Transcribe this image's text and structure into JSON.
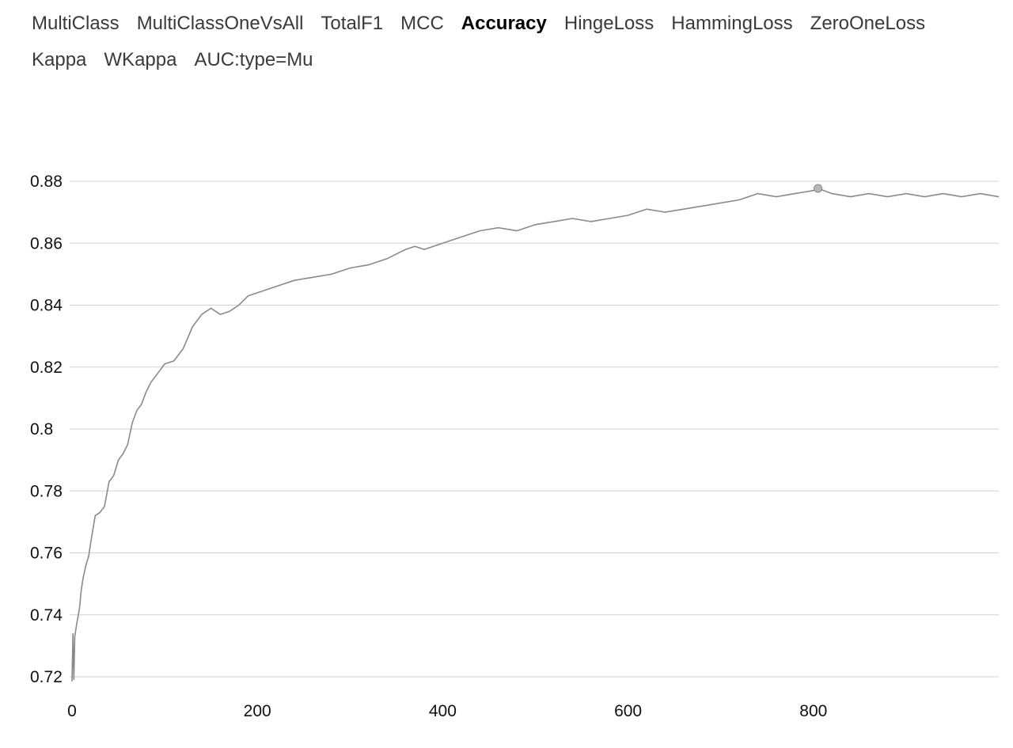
{
  "tabs": [
    {
      "label": "MultiClass",
      "active": false
    },
    {
      "label": "MultiClassOneVsAll",
      "active": false
    },
    {
      "label": "TotalF1",
      "active": false
    },
    {
      "label": "MCC",
      "active": false
    },
    {
      "label": "Accuracy",
      "active": true
    },
    {
      "label": "HingeLoss",
      "active": false
    },
    {
      "label": "HammingLoss",
      "active": false
    },
    {
      "label": "ZeroOneLoss",
      "active": false
    },
    {
      "label": "Kappa",
      "active": false
    },
    {
      "label": "WKappa",
      "active": false
    },
    {
      "label": "AUC:type=Mu",
      "active": false
    }
  ],
  "colors": {
    "line": "#8a8a8a",
    "grid": "#d2d2d2",
    "marker": "#b8b8b8"
  },
  "chart_data": {
    "type": "line",
    "title": "",
    "xlabel": "",
    "ylabel": "",
    "xlim": [
      0,
      1000
    ],
    "ylim": [
      0.72,
      0.88
    ],
    "x_ticks": [
      0,
      200,
      400,
      600,
      800
    ],
    "y_ticks": [
      0.72,
      0.74,
      0.76,
      0.78,
      0.8,
      0.82,
      0.84,
      0.86,
      0.88
    ],
    "y_tick_labels": [
      "0.72",
      "0.74",
      "0.76",
      "0.78",
      "0.8",
      "0.82",
      "0.84",
      "0.86",
      "0.88"
    ],
    "grid": true,
    "legend": "none",
    "highlight_point": {
      "x": 805,
      "y": 0.8777
    },
    "series": [
      {
        "x": [
          0,
          1,
          2,
          3,
          5,
          8,
          10,
          12,
          15,
          18,
          20,
          25,
          30,
          35,
          40,
          45,
          50,
          55,
          60,
          65,
          70,
          75,
          80,
          85,
          90,
          95,
          100,
          110,
          120,
          130,
          140,
          150,
          160,
          170,
          180,
          190,
          200,
          220,
          240,
          260,
          280,
          300,
          320,
          340,
          360,
          370,
          380,
          400,
          420,
          440,
          460,
          480,
          500,
          520,
          540,
          560,
          580,
          600,
          620,
          640,
          660,
          680,
          700,
          720,
          740,
          760,
          780,
          800,
          805,
          820,
          840,
          860,
          880,
          900,
          920,
          940,
          960,
          980,
          1000
        ],
        "y": [
          0.7185,
          0.734,
          0.719,
          0.733,
          0.737,
          0.742,
          0.748,
          0.752,
          0.756,
          0.759,
          0.763,
          0.772,
          0.773,
          0.775,
          0.783,
          0.785,
          0.79,
          0.792,
          0.795,
          0.802,
          0.806,
          0.808,
          0.812,
          0.815,
          0.817,
          0.819,
          0.821,
          0.822,
          0.826,
          0.833,
          0.837,
          0.839,
          0.837,
          0.838,
          0.84,
          0.843,
          0.844,
          0.846,
          0.848,
          0.849,
          0.85,
          0.852,
          0.853,
          0.855,
          0.858,
          0.859,
          0.858,
          0.86,
          0.862,
          0.864,
          0.865,
          0.864,
          0.866,
          0.867,
          0.868,
          0.867,
          0.868,
          0.869,
          0.871,
          0.87,
          0.871,
          0.872,
          0.873,
          0.874,
          0.876,
          0.875,
          0.876,
          0.877,
          0.8777,
          0.876,
          0.875,
          0.876,
          0.875,
          0.876,
          0.875,
          0.876,
          0.875,
          0.876,
          0.875
        ]
      }
    ]
  }
}
